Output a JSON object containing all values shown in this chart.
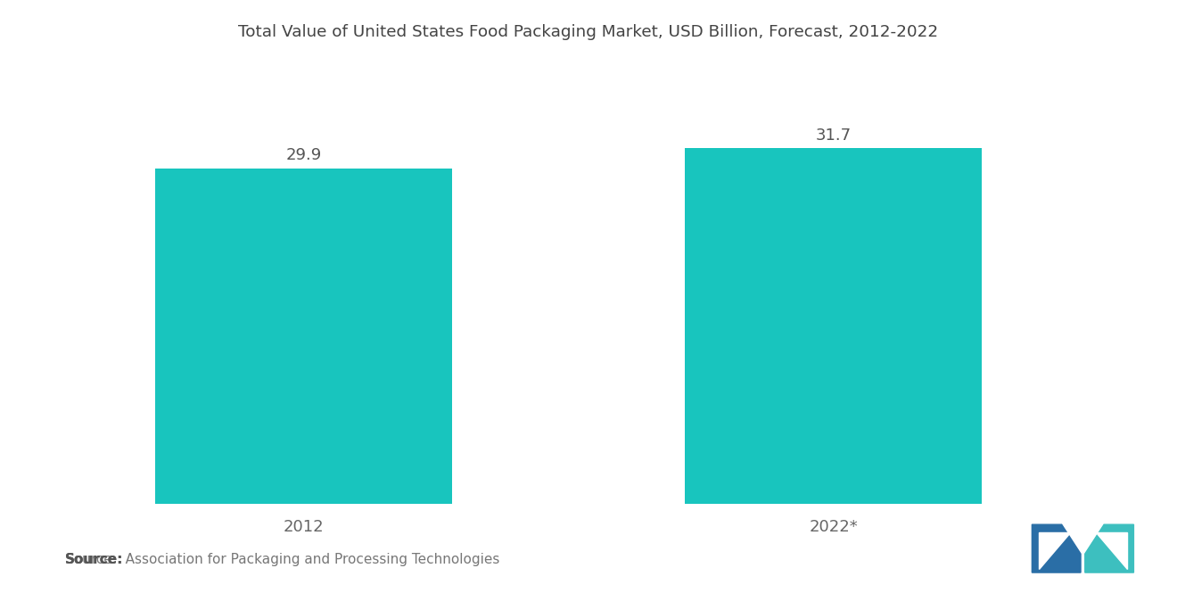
{
  "title": "Total Value of United States Food Packaging Market, USD Billion, Forecast, 2012-2022",
  "categories": [
    "2012",
    "2022*"
  ],
  "values": [
    29.9,
    31.7
  ],
  "bar_color": "#18C5BE",
  "background_color": "#ffffff",
  "title_fontsize": 13.2,
  "label_fontsize": 13,
  "value_fontsize": 13,
  "source_bold": "Source:",
  "source_rest": "  Association for Packaging and Processing Technologies",
  "source_fontsize": 11,
  "ylim": [
    0,
    38
  ],
  "bar_width": 0.28,
  "x_positions": [
    0.22,
    0.72
  ],
  "xlim": [
    0.0,
    1.0
  ],
  "logo_left_color": "#2A6EA6",
  "logo_right_color": "#3DBFBF"
}
